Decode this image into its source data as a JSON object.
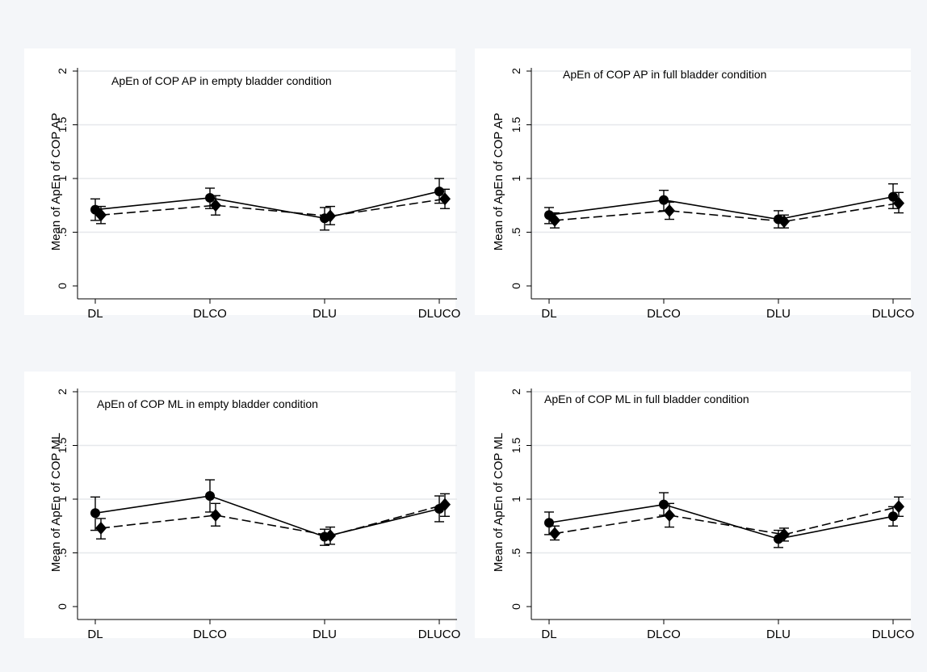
{
  "chart_data": [
    {
      "type": "line",
      "title": "ApEn of COP AP in empty bladder condition",
      "ylabel": "Mean of ApEn of COP AP",
      "xlabel": "",
      "categories": [
        "DL",
        "DLCO",
        "DLU",
        "DLUCO"
      ],
      "ylim": [
        0,
        2
      ],
      "yticks": [
        0,
        0.5,
        1,
        1.5,
        2
      ],
      "ytick_labels": [
        "0",
        ".5",
        "1",
        "1.5",
        "2"
      ],
      "grid": true,
      "series": [
        {
          "marker": "circle",
          "line": "solid",
          "values": [
            0.71,
            0.82,
            0.63,
            0.88
          ],
          "ci_low": [
            0.61,
            0.72,
            0.52,
            0.77
          ],
          "ci_high": [
            0.81,
            0.91,
            0.73,
            1.0
          ]
        },
        {
          "marker": "diamond",
          "line": "dashed",
          "values": [
            0.66,
            0.75,
            0.65,
            0.81
          ],
          "ci_low": [
            0.58,
            0.66,
            0.57,
            0.72
          ],
          "ci_high": [
            0.74,
            0.84,
            0.74,
            0.9
          ]
        }
      ]
    },
    {
      "type": "line",
      "title": "ApEn of COP AP in full bladder condition",
      "ylabel": "Mean of ApEn of COP AP",
      "xlabel": "",
      "categories": [
        "DL",
        "DLCO",
        "DLU",
        "DLUCO"
      ],
      "ylim": [
        0,
        2
      ],
      "yticks": [
        0,
        0.5,
        1,
        1.5,
        2
      ],
      "ytick_labels": [
        "0",
        ".5",
        "1",
        "1.5",
        "2"
      ],
      "grid": true,
      "series": [
        {
          "marker": "circle",
          "line": "solid",
          "values": [
            0.66,
            0.8,
            0.62,
            0.83
          ],
          "ci_low": [
            0.58,
            0.7,
            0.54,
            0.72
          ],
          "ci_high": [
            0.73,
            0.89,
            0.7,
            0.95
          ]
        },
        {
          "marker": "diamond",
          "line": "dashed",
          "values": [
            0.61,
            0.7,
            0.6,
            0.77
          ],
          "ci_low": [
            0.54,
            0.62,
            0.54,
            0.68
          ],
          "ci_high": [
            0.68,
            0.78,
            0.66,
            0.87
          ]
        }
      ]
    },
    {
      "type": "line",
      "title": "ApEn of COP ML in empty bladder condition",
      "ylabel": "Mean of ApEn of COP ML",
      "xlabel": "",
      "categories": [
        "DL",
        "DLCO",
        "DLU",
        "DLUCO"
      ],
      "ylim": [
        0,
        2
      ],
      "yticks": [
        0,
        0.5,
        1,
        1.5,
        2
      ],
      "ytick_labels": [
        "0",
        ".5",
        "1",
        "1.5",
        "2"
      ],
      "grid": true,
      "series": [
        {
          "marker": "circle",
          "line": "solid",
          "values": [
            0.87,
            1.03,
            0.65,
            0.91
          ],
          "ci_low": [
            0.71,
            0.88,
            0.57,
            0.79
          ],
          "ci_high": [
            1.02,
            1.18,
            0.72,
            1.03
          ]
        },
        {
          "marker": "diamond",
          "line": "dashed",
          "values": [
            0.73,
            0.85,
            0.66,
            0.95
          ],
          "ci_low": [
            0.63,
            0.75,
            0.58,
            0.84
          ],
          "ci_high": [
            0.82,
            0.96,
            0.74,
            1.05
          ]
        }
      ]
    },
    {
      "type": "line",
      "title": "ApEn of COP ML in full bladder condition",
      "ylabel": "Mean of ApEn of COP ML",
      "xlabel": "",
      "categories": [
        "DL",
        "DLCO",
        "DLU",
        "DLUCO"
      ],
      "ylim": [
        0,
        2
      ],
      "yticks": [
        0,
        0.5,
        1,
        1.5,
        2
      ],
      "ytick_labels": [
        "0",
        ".5",
        "1",
        "1.5",
        "2"
      ],
      "grid": true,
      "series": [
        {
          "marker": "circle",
          "line": "solid",
          "values": [
            0.78,
            0.95,
            0.63,
            0.84
          ],
          "ci_low": [
            0.67,
            0.85,
            0.55,
            0.75
          ],
          "ci_high": [
            0.88,
            1.06,
            0.71,
            0.93
          ]
        },
        {
          "marker": "diamond",
          "line": "dashed",
          "values": [
            0.68,
            0.85,
            0.67,
            0.93
          ],
          "ci_low": [
            0.62,
            0.74,
            0.61,
            0.84
          ],
          "ci_high": [
            0.75,
            0.96,
            0.73,
            1.02
          ]
        }
      ]
    }
  ],
  "colors": {
    "background": "#f4f6f9",
    "plot_area": "#ffffff",
    "gridline": "#e6e8eb",
    "ink": "#000000"
  }
}
